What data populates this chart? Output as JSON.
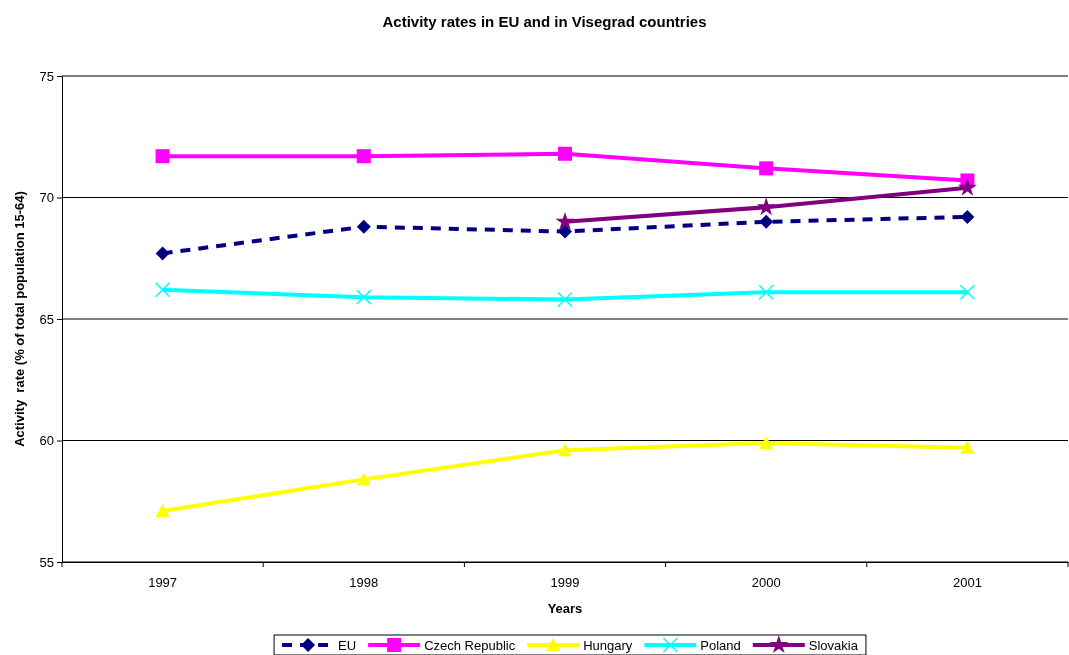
{
  "chart_data": {
    "type": "line",
    "title": "Activity rates in EU and in Visegrad countries",
    "xlabel": "Years",
    "ylabel": "Activity  rate (% of total population 15-64)",
    "categories": [
      "1997",
      "1998",
      "1999",
      "2000",
      "2001"
    ],
    "series": [
      {
        "name": "EU",
        "color": "#000080",
        "values": [
          67.7,
          68.8,
          68.6,
          69.0,
          69.2
        ],
        "marker": "diamond",
        "line_style": "dashed"
      },
      {
        "name": "Czech Republic",
        "color": "#ff00ff",
        "values": [
          71.7,
          71.7,
          71.8,
          71.2,
          70.7
        ],
        "marker": "square",
        "line_style": "solid"
      },
      {
        "name": "Hungary",
        "color": "#ffff00",
        "values": [
          57.1,
          58.4,
          59.6,
          59.9,
          59.7
        ],
        "marker": "triangle",
        "line_style": "solid"
      },
      {
        "name": "Poland",
        "color": "#00ffff",
        "values": [
          66.2,
          65.9,
          65.8,
          66.1,
          66.1
        ],
        "marker": "cross",
        "line_style": "solid"
      },
      {
        "name": "Slovakia",
        "color": "#800080",
        "values": [
          null,
          null,
          69.0,
          69.6,
          70.4
        ],
        "marker": "star",
        "line_style": "solid"
      }
    ],
    "ylim": [
      55,
      75
    ],
    "yticks": [
      55,
      60,
      65,
      70,
      75
    ],
    "grid": "y",
    "legend": "bottom"
  }
}
